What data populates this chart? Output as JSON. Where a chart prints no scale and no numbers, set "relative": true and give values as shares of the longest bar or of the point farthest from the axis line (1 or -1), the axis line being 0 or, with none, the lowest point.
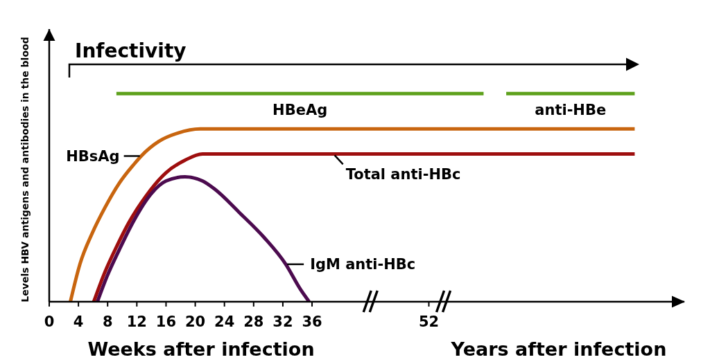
{
  "chart_data": {
    "type": "line",
    "relative": true,
    "xlabel": "Weeks after infection",
    "ylabel": "Levels HBV antigens and antibodies in the blood",
    "annotations": [
      "Infectivity",
      "Years after infection"
    ],
    "xlim": [
      0,
      87
    ],
    "xticks": [
      0,
      4,
      8,
      12,
      16,
      20,
      24,
      28,
      32,
      36,
      52
    ],
    "marker": "none",
    "line_style": "solid",
    "series": [
      {
        "name": "HBsAg",
        "color": "#c8650f",
        "x": [
          2.9,
          4.2,
          5.9,
          7.6,
          9.6,
          11.6,
          12.6,
          15.0,
          17.6,
          20.7,
          80.2
        ],
        "values": [
          0,
          0.18,
          0.33,
          0.45,
          0.57,
          0.66,
          0.7,
          0.77,
          0.81,
          0.83,
          0.83
        ]
      },
      {
        "name": "Total anti-HBc",
        "color": "#9e0e0e",
        "x": [
          6.1,
          7.6,
          9.3,
          10.9,
          13.3,
          16.0,
          18.6,
          21.0,
          39.1,
          80.2
        ],
        "values": [
          0,
          0.14,
          0.27,
          0.38,
          0.51,
          0.62,
          0.68,
          0.71,
          0.71,
          0.71
        ]
      },
      {
        "name": "IgM anti-HBc",
        "color": "#4c0b4f",
        "x": [
          6.6,
          7.9,
          9.6,
          11.6,
          14.0,
          16.0,
          18.6,
          21.0,
          22.7,
          26.0,
          29.4,
          32.4,
          34.4,
          35.6
        ],
        "values": [
          0,
          0.12,
          0.25,
          0.39,
          0.52,
          0.58,
          0.6,
          0.58,
          0.54,
          0.43,
          0.31,
          0.18,
          0.06,
          0
        ]
      },
      {
        "name": "HBeAg",
        "color": "#5ea11c",
        "x": [
          9.2,
          59.5
        ],
        "values": [
          1,
          1
        ]
      },
      {
        "name": "anti-HBe",
        "color": "#5ea11c",
        "x": [
          62.6,
          80.2
        ],
        "values": [
          1,
          1
        ]
      }
    ]
  }
}
